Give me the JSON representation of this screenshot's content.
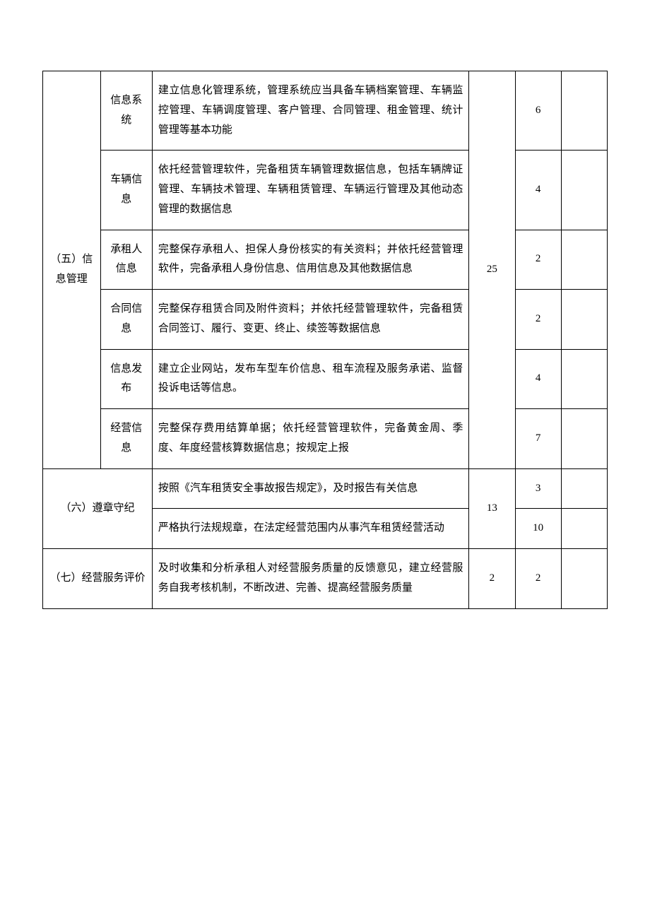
{
  "table": {
    "border_color": "#000000",
    "background_color": "#ffffff",
    "text_color": "#000000",
    "font_size": 15,
    "line_height": 1.85,
    "columns": {
      "category_width": "10%",
      "item_width": "9%",
      "desc_width": "55%",
      "total_width": "8%",
      "score_width": "8%",
      "blank_width": "8%"
    },
    "sections": [
      {
        "category": "（五）信息管理",
        "total_score": "25",
        "rows": [
          {
            "item": "信息系统",
            "description": "建立信息化管理系统，管理系统应当具备车辆档案管理、车辆监控管理、车辆调度管理、客户管理、合同管理、租金管理、统计管理等基本功能",
            "score": "6"
          },
          {
            "item": "车辆信息",
            "description": "依托经营管理软件，完备租赁车辆管理数据信息，包括车辆牌证管理、车辆技术管理、车辆租赁管理、车辆运行管理及其他动态管理的数据信息",
            "score": "4"
          },
          {
            "item": "承租人信息",
            "description": "完整保存承租人、担保人身份核实的有关资料；并依托经营管理软件，完备承租人身份信息、信用信息及其他数据信息",
            "score": "2"
          },
          {
            "item": "合同信息",
            "description": "完整保存租赁合同及附件资料；并依托经营管理软件，完备租赁合同签订、履行、变更、终止、续签等数据信息",
            "score": "2"
          },
          {
            "item": "信息发布",
            "description": "建立企业网站，发布车型车价信息、租车流程及服务承诺、监督投诉电话等信息。",
            "score": "4"
          },
          {
            "item": "经营信息",
            "description": "完整保存费用结算单据；依托经营管理软件，完备黄金周、季度、年度经营核算数据信息；按规定上报",
            "score": "7"
          }
        ]
      },
      {
        "category": "（六）遵章守纪",
        "total_score": "13",
        "merged_item": true,
        "rows": [
          {
            "description": "按照《汽车租赁安全事故报告规定》，及时报告有关信息",
            "score": "3"
          },
          {
            "description": "严格执行法规规章，在法定经营范围内从事汽车租赁经营活动",
            "score": "10"
          }
        ]
      },
      {
        "category": "（七）经营服务评价",
        "total_score": "2",
        "merged_item": true,
        "rows": [
          {
            "description": "及时收集和分析承租人对经营服务质量的反馈意见，建立经营服务自我考核机制，不断改进、完善、提高经营服务质量",
            "score": "2"
          }
        ]
      }
    ]
  }
}
